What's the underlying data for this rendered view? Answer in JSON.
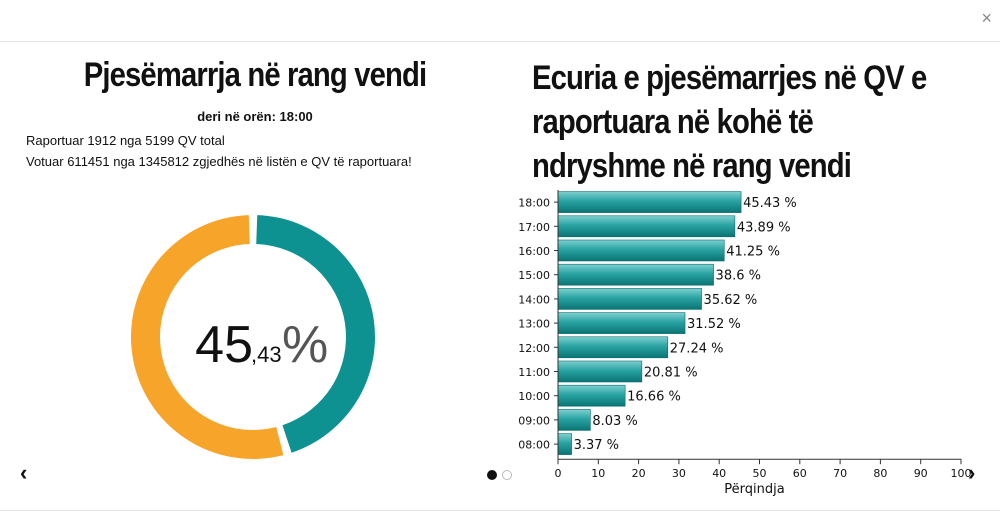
{
  "left_panel": {
    "title": "Pjesëmarrja në rang vendi",
    "subtitle": "deri në orën: 18:00",
    "line1": "Raportuar 1912 nga 5199 QV total",
    "line2": "Votuar 611451 nga 1345812 zgjedhës në listën e QV të raportuara!",
    "percent_int": "45",
    "percent_dec": ",43",
    "percent_sign": "%"
  },
  "right_panel": {
    "title_lines": [
      "Ecuria e pjesëmarrjes në QV e",
      "raportuara në kohë të",
      "ndryshme në rang vendi"
    ]
  },
  "controls": {
    "close": "×",
    "prev": "‹",
    "next": "›"
  },
  "colors": {
    "teal": "#0e9191",
    "orange": "#f7a52a",
    "bar_top": "#5cc0c0",
    "bar_bottom": "#0b7c7c"
  },
  "chart_data": [
    {
      "type": "pie",
      "labels": [
        "",
        ""
      ],
      "values": [
        45.43,
        54.57
      ],
      "colors": [
        "#0e9191",
        "#f7a52a"
      ]
    },
    {
      "type": "bar",
      "orientation": "horizontal",
      "categories": [
        "18:00",
        "17:00",
        "16:00",
        "15:00",
        "14:00",
        "13:00",
        "12:00",
        "11:00",
        "10:00",
        "09:00",
        "08:00"
      ],
      "values": [
        45.43,
        43.89,
        41.25,
        38.6,
        35.62,
        31.52,
        27.24,
        20.81,
        16.66,
        8.03,
        3.37
      ],
      "value_labels": [
        "45.43 %",
        "43.89 %",
        "41.25 %",
        "38.6 %",
        "35.62 %",
        "31.52 %",
        "27.24 %",
        "20.81 %",
        "16.66 %",
        "8.03 %",
        "3.37 %"
      ],
      "xlabel": "Përqindja",
      "xlim": [
        0,
        100
      ],
      "xticks": [
        0,
        10,
        20,
        30,
        40,
        50,
        60,
        70,
        80,
        90,
        100
      ],
      "grid": false
    }
  ]
}
